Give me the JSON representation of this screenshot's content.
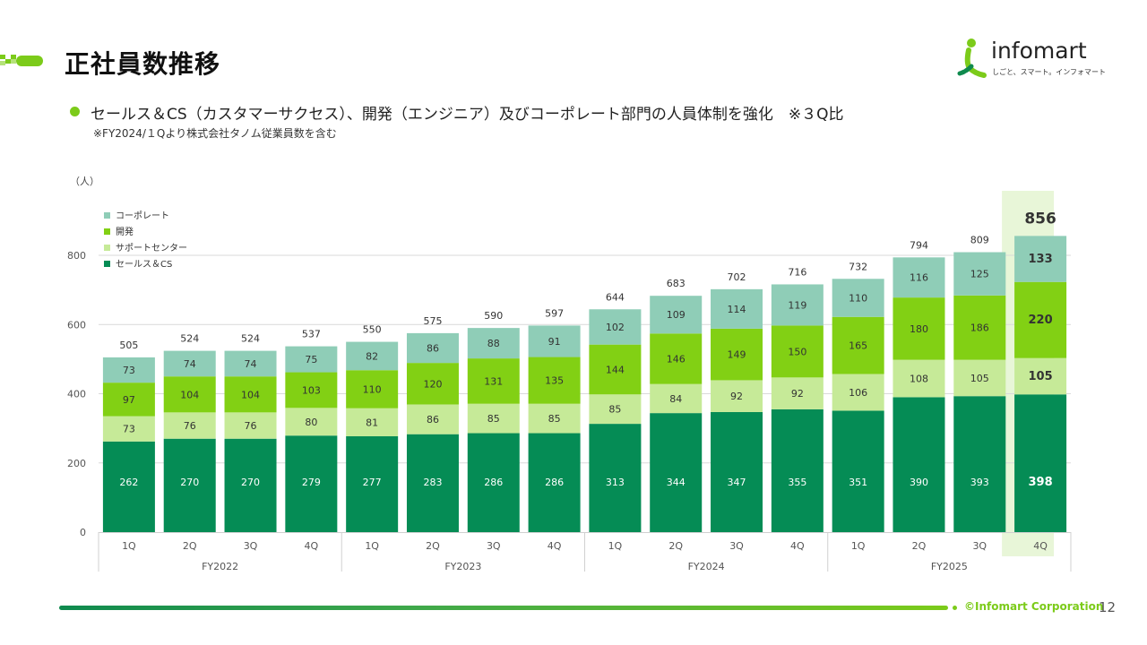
{
  "slide": {
    "title": "正社員数推移",
    "bullet": "セールス＆CS（カスタマーサクセス）、開発（エンジニア）及びコーポレート部門の人員体制を強化　※３Q比",
    "note": "※FY2024/１Qより株式会社タノム従業員数を含む",
    "logo": {
      "word": "infomart",
      "tagline": "しごと、スマート。インフォマート"
    },
    "footer": {
      "copyright": "©Infomart Corporation",
      "page": "12"
    }
  },
  "colors": {
    "sales_cs": "#058c55",
    "support": "#c6ea98",
    "dev": "#82d014",
    "corporate": "#8fcdb7",
    "highlight": "#e8f6d8",
    "accent": "#7ccb1a"
  },
  "chart_data": {
    "type": "bar",
    "stacked": true,
    "unit_label": "（人）",
    "categories": [
      "1Q",
      "2Q",
      "3Q",
      "4Q",
      "1Q",
      "2Q",
      "3Q",
      "4Q",
      "1Q",
      "2Q",
      "3Q",
      "4Q",
      "1Q",
      "2Q",
      "3Q",
      "4Q"
    ],
    "groups": [
      {
        "label": "FY2022",
        "span": 4
      },
      {
        "label": "FY2023",
        "span": 4
      },
      {
        "label": "FY2024",
        "span": 4
      },
      {
        "label": "FY2025",
        "span": 4
      }
    ],
    "series": [
      {
        "name": "セールス＆CS",
        "key": "sales_cs",
        "values": [
          262,
          270,
          270,
          279,
          277,
          283,
          286,
          286,
          313,
          344,
          347,
          355,
          351,
          390,
          393,
          398
        ]
      },
      {
        "name": "サポートセンター",
        "key": "support",
        "values": [
          73,
          76,
          76,
          80,
          81,
          86,
          85,
          85,
          85,
          84,
          92,
          92,
          106,
          108,
          105,
          105
        ]
      },
      {
        "name": "開発",
        "key": "dev",
        "values": [
          97,
          104,
          104,
          103,
          110,
          120,
          131,
          135,
          144,
          146,
          149,
          150,
          165,
          180,
          186,
          220
        ]
      },
      {
        "name": "コーポレート",
        "key": "corporate",
        "values": [
          73,
          74,
          74,
          75,
          82,
          86,
          88,
          91,
          102,
          109,
          114,
          119,
          110,
          116,
          125,
          133
        ]
      }
    ],
    "totals": [
      505,
      524,
      524,
      537,
      550,
      575,
      590,
      597,
      644,
      683,
      702,
      716,
      732,
      794,
      809,
      856
    ],
    "legend_order": [
      "コーポレート",
      "開発",
      "サポートセンター",
      "セールス＆CS"
    ],
    "legend_position": "top-left",
    "highlight_index": 15,
    "yticks": [
      0,
      200,
      400,
      600,
      800
    ],
    "ylim": [
      0,
      800
    ],
    "grid": true,
    "title": "",
    "xlabel": "",
    "ylabel": "（人）"
  }
}
